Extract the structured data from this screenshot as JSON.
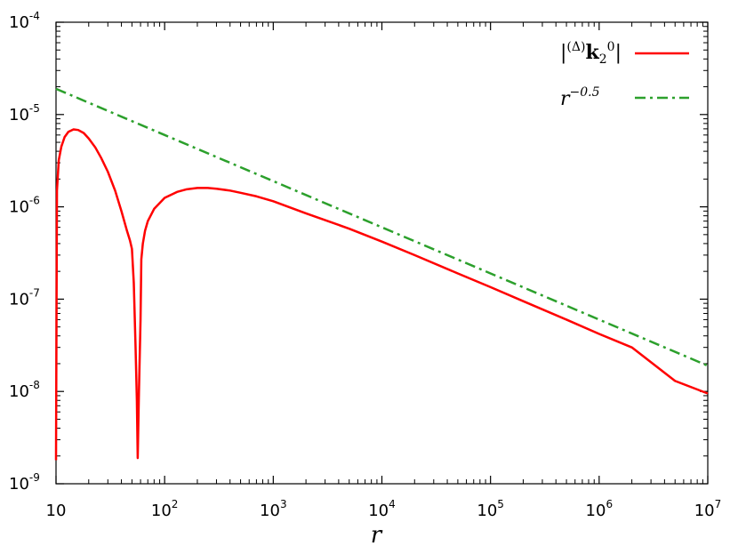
{
  "chart_data": {
    "type": "line",
    "title": "",
    "xlabel": "r",
    "ylabel": "",
    "x_scale": "log",
    "y_scale": "log",
    "xlim": [
      10,
      10000000
    ],
    "ylim": [
      1e-09,
      0.0001
    ],
    "grid": false,
    "legend_position": "top-right",
    "x_ticks": [
      {
        "value": 10,
        "base": "10",
        "exp": ""
      },
      {
        "value": 100,
        "base": "10",
        "exp": "2"
      },
      {
        "value": 1000,
        "base": "10",
        "exp": "3"
      },
      {
        "value": 10000,
        "base": "10",
        "exp": "4"
      },
      {
        "value": 100000,
        "base": "10",
        "exp": "5"
      },
      {
        "value": 1000000,
        "base": "10",
        "exp": "6"
      },
      {
        "value": 10000000,
        "base": "10",
        "exp": "7"
      }
    ],
    "y_ticks": [
      {
        "value": 1e-09,
        "base": "10",
        "exp": "-9"
      },
      {
        "value": 1e-08,
        "base": "10",
        "exp": "-8"
      },
      {
        "value": 1e-07,
        "base": "10",
        "exp": "-7"
      },
      {
        "value": 1e-06,
        "base": "10",
        "exp": "-6"
      },
      {
        "value": 1e-05,
        "base": "10",
        "exp": "-5"
      },
      {
        "value": 0.0001,
        "base": "10",
        "exp": "-4"
      }
    ],
    "series": [
      {
        "legend": {
          "pre_sup": "(Δ)",
          "main": "k",
          "sub": "2",
          "sup": "0"
        },
        "color": "#ff0000",
        "style": "solid",
        "x": [
          10,
          10.2,
          10.6,
          11.2,
          12,
          13,
          14.5,
          16,
          18,
          20,
          23,
          26,
          30,
          35,
          40,
          45,
          48,
          50,
          52,
          54,
          55.5,
          56.5,
          58,
          60,
          61,
          63,
          66,
          70,
          80,
          100,
          130,
          160,
          200,
          250,
          300,
          400,
          500,
          700,
          1000,
          2000,
          5000,
          10000,
          20000,
          50000,
          100000,
          200000,
          500000,
          1000000,
          2000000,
          5000000,
          10000000
        ],
        "y": [
          1.8e-09,
          1.5e-06,
          3.2e-06,
          4.5e-06,
          5.7e-06,
          6.5e-06,
          6.9e-06,
          6.8e-06,
          6.3e-06,
          5.5e-06,
          4.4e-06,
          3.4e-06,
          2.4e-06,
          1.5e-06,
          9e-07,
          5.5e-07,
          4.3e-07,
          3.5e-07,
          1.5e-07,
          3e-08,
          8e-09,
          1.9e-09,
          1e-08,
          6e-08,
          2.7e-07,
          4e-07,
          5.5e-07,
          7e-07,
          9.5e-07,
          1.25e-06,
          1.45e-06,
          1.55e-06,
          1.6e-06,
          1.6e-06,
          1.57e-06,
          1.5e-06,
          1.42e-06,
          1.3e-06,
          1.15e-06,
          8.5e-07,
          5.8e-07,
          4.2e-07,
          3e-07,
          1.9e-07,
          1.35e-07,
          9.5e-08,
          6e-08,
          4.2e-08,
          3e-08,
          1.3e-08,
          9.5e-09
        ]
      },
      {
        "legend": {
          "base": "r",
          "sup": "−0.5"
        },
        "color": "#2ca02c",
        "style": "dash-dot",
        "x": [
          10,
          100,
          1000,
          10000,
          100000,
          1000000,
          10000000
        ],
        "y": [
          1.9e-05,
          6e-06,
          1.9e-06,
          6e-07,
          1.9e-07,
          6e-08,
          1.9e-08
        ]
      }
    ]
  }
}
